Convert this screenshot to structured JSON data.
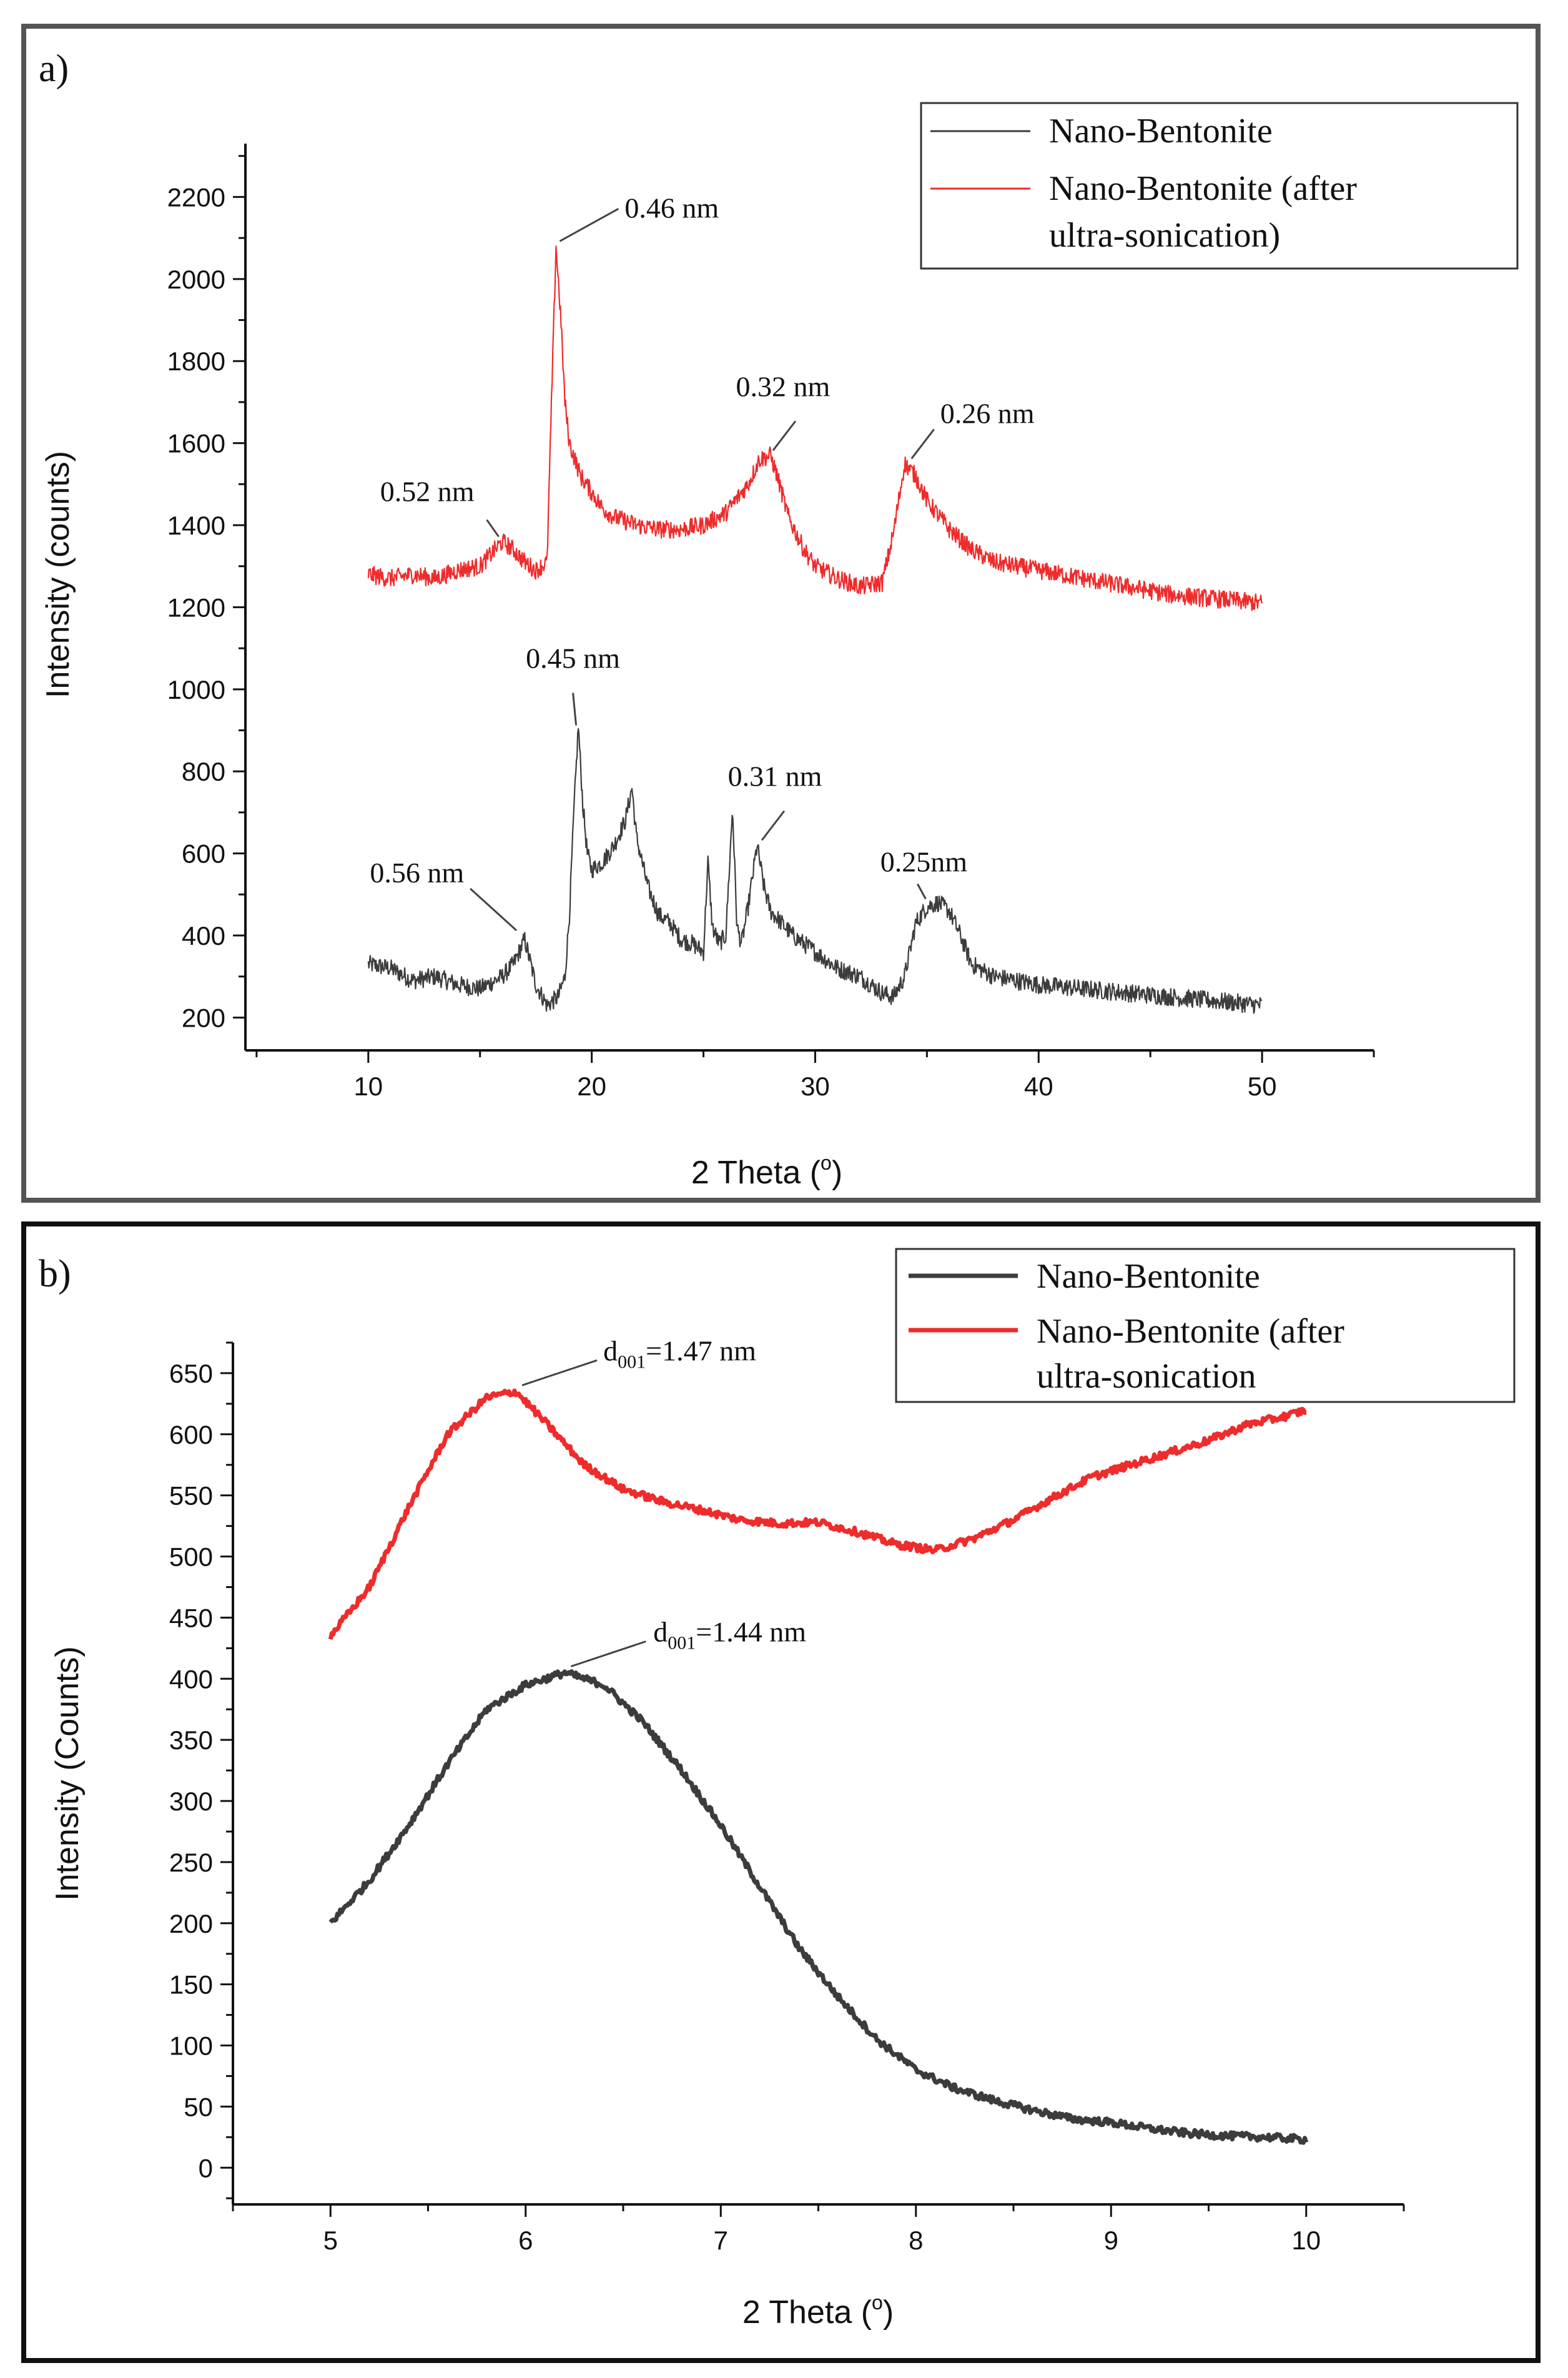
{
  "chart_data": [
    {
      "type": "line",
      "panel_label": "a)",
      "xlabel": "2 Theta (o)",
      "xlabel_main": "2 Theta (",
      "xlabel_sup": "o",
      "xlabel_end": ")",
      "ylabel": "Intensity (counts)",
      "xlim": [
        4.5,
        55
      ],
      "ylim": [
        120,
        2330
      ],
      "x_ticks": [
        10,
        20,
        30,
        40,
        50
      ],
      "y_ticks": [
        200,
        400,
        600,
        800,
        1000,
        1200,
        1400,
        1600,
        1800,
        2000,
        2200
      ],
      "legend": [
        "Nano-Bentonite",
        "Nano-Bentonite (after",
        "ultra-sonication)"
      ],
      "colors": {
        "series0": "#3c3c3c",
        "series1": "#ef2b2b"
      },
      "series": [
        {
          "name": "Nano-Bentonite",
          "x": [
            10,
            11,
            12,
            13,
            14,
            15,
            16,
            16.5,
            17,
            17.5,
            18,
            18.5,
            18.8,
            19.0,
            19.2,
            19.4,
            19.6,
            19.8,
            20,
            20.5,
            21,
            21.5,
            21.8,
            22,
            22.5,
            23,
            23.5,
            24,
            24.5,
            25,
            25.2,
            25.4,
            25.7,
            26,
            26.3,
            26.5,
            26.7,
            27,
            27.4,
            27.7,
            28,
            28.5,
            29,
            30,
            31,
            32,
            32.5,
            33,
            33.5,
            34,
            34.5,
            35,
            35.5,
            36,
            36.5,
            37,
            38,
            39,
            40,
            42,
            44,
            46,
            48,
            50
          ],
          "values": [
            330,
            320,
            290,
            300,
            280,
            270,
            300,
            330,
            390,
            280,
            230,
            250,
            300,
            450,
            700,
            910,
            720,
            600,
            560,
            580,
            620,
            680,
            760,
            640,
            520,
            450,
            430,
            390,
            380,
            360,
            580,
            420,
            380,
            400,
            710,
            420,
            380,
            470,
            620,
            520,
            460,
            430,
            400,
            360,
            320,
            300,
            280,
            260,
            250,
            300,
            430,
            470,
            480,
            460,
            400,
            330,
            300,
            290,
            280,
            270,
            260,
            250,
            240,
            230
          ]
        },
        {
          "name": "Nano-Bentonite (after ultra-sonication)",
          "x": [
            10,
            11,
            12,
            13,
            14,
            15,
            15.5,
            16,
            16.5,
            17,
            17.5,
            18,
            18.2,
            18.4,
            18.6,
            18.8,
            19,
            19.5,
            20,
            20.5,
            21,
            22,
            23,
            24,
            25,
            26,
            27,
            27.5,
            28,
            28.3,
            28.8,
            29.5,
            30,
            31,
            32,
            33,
            33.5,
            34,
            34.5,
            35,
            36,
            37,
            38,
            40,
            42,
            44,
            46,
            48,
            50
          ],
          "values": [
            1280,
            1270,
            1280,
            1270,
            1290,
            1300,
            1330,
            1360,
            1340,
            1310,
            1290,
            1310,
            1700,
            2080,
            1920,
            1700,
            1600,
            1520,
            1480,
            1440,
            1420,
            1400,
            1390,
            1390,
            1400,
            1430,
            1500,
            1560,
            1570,
            1520,
            1420,
            1340,
            1300,
            1270,
            1250,
            1260,
            1380,
            1550,
            1520,
            1460,
            1390,
            1340,
            1310,
            1290,
            1270,
            1250,
            1230,
            1220,
            1210
          ]
        }
      ],
      "annotations": [
        {
          "text": "0.52 nm",
          "x": 16.0,
          "y": 1360
        },
        {
          "text": "0.46 nm",
          "x": 18.4,
          "y": 2080
        },
        {
          "text": "0.32 nm",
          "x": 28.0,
          "y": 1570
        },
        {
          "text": "0.26 nm",
          "x": 34.2,
          "y": 1550
        },
        {
          "text": "0.56 nm",
          "x": 16.8,
          "y": 400
        },
        {
          "text": "0.45 nm",
          "x": 19.3,
          "y": 900
        },
        {
          "text": "0.31 nm",
          "x": 27.5,
          "y": 620
        },
        {
          "text": "0.25nm",
          "x": 35.0,
          "y": 480
        }
      ]
    },
    {
      "type": "line",
      "panel_label": "b)",
      "xlabel": "2 Theta (o)",
      "xlabel_main": "2 Theta (",
      "xlabel_sup": "o",
      "xlabel_end": ")",
      "ylabel": "Intensity (Counts)",
      "xlim": [
        4.5,
        10.5
      ],
      "ylim": [
        -30,
        675
      ],
      "x_ticks": [
        5,
        6,
        7,
        8,
        9,
        10
      ],
      "y_ticks": [
        0,
        50,
        100,
        150,
        200,
        250,
        300,
        350,
        400,
        450,
        500,
        550,
        600,
        650
      ],
      "legend": [
        "Nano-Bentonite",
        "Nano-Bentonite (after",
        "ultra-sonication"
      ],
      "colors": {
        "series0": "#3c3c3c",
        "series1": "#ef2b2b"
      },
      "series": [
        {
          "name": "Nano-Bentonite",
          "x": [
            5.0,
            5.2,
            5.4,
            5.6,
            5.8,
            6.0,
            6.2,
            6.4,
            6.6,
            6.8,
            7.0,
            7.2,
            7.4,
            7.6,
            7.8,
            8.0,
            8.2,
            8.4,
            8.6,
            8.8,
            9.0,
            9.2,
            9.4,
            9.6,
            9.8,
            10.0
          ],
          "values": [
            200,
            235,
            280,
            330,
            375,
            395,
            405,
            395,
            365,
            325,
            280,
            230,
            180,
            140,
            105,
            80,
            65,
            55,
            47,
            40,
            37,
            32,
            28,
            26,
            25,
            23
          ]
        },
        {
          "name": "Nano-Bentonite (after ultra-sonication",
          "x": [
            5.0,
            5.1,
            5.2,
            5.4,
            5.6,
            5.8,
            5.95,
            6.1,
            6.3,
            6.5,
            6.7,
            6.9,
            7.1,
            7.3,
            7.5,
            7.7,
            7.9,
            8.1,
            8.3,
            8.5,
            8.7,
            8.9,
            9.1,
            9.3,
            9.5,
            9.7,
            9.9,
            10.0
          ],
          "values": [
            435,
            455,
            475,
            540,
            600,
            630,
            635,
            610,
            575,
            555,
            545,
            538,
            530,
            527,
            528,
            520,
            510,
            505,
            515,
            530,
            548,
            565,
            575,
            585,
            595,
            608,
            615,
            620
          ]
        }
      ],
      "annotations": [
        {
          "text_main": "d",
          "text_sub": "001",
          "text_end": "=1.47 nm",
          "x": 5.95,
          "y": 635
        },
        {
          "text_main": "d",
          "text_sub": "001",
          "text_end": "=1.44 nm",
          "x": 6.2,
          "y": 405
        }
      ]
    }
  ]
}
